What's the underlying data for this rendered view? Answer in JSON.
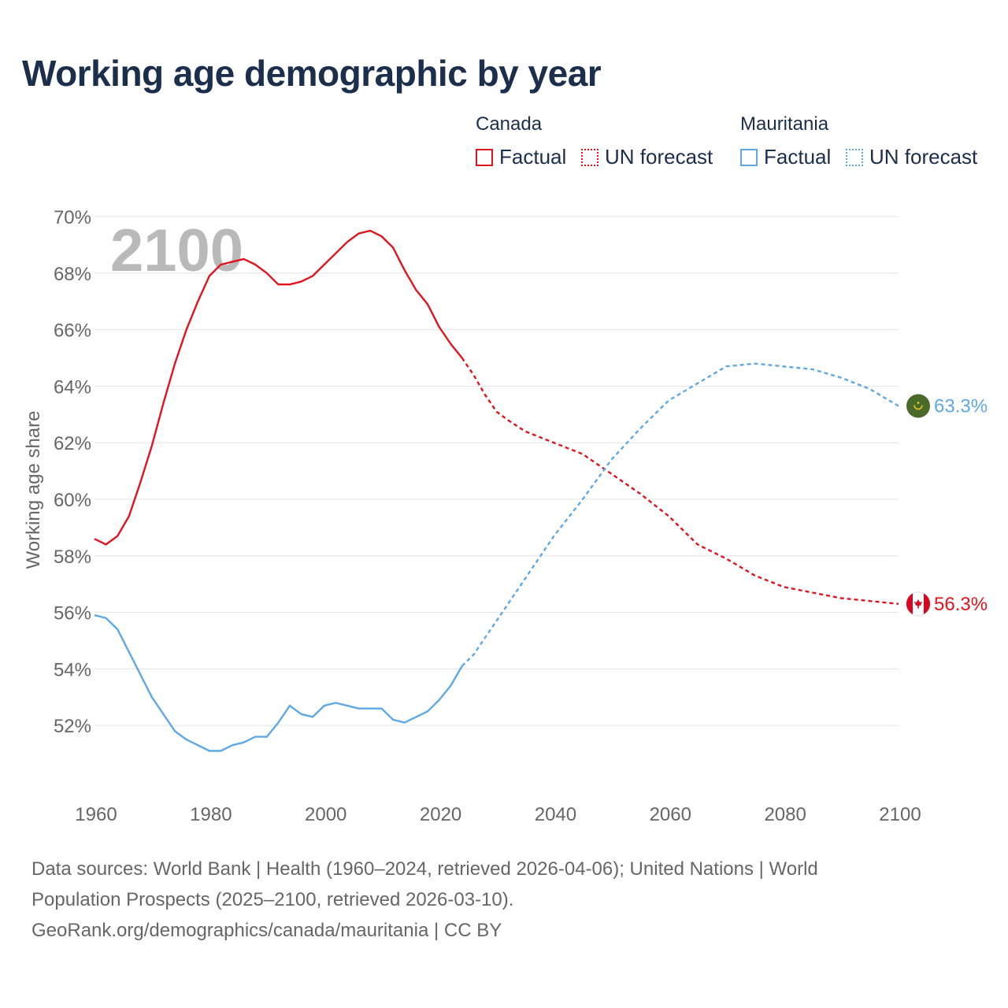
{
  "title": "Working age demographic by year",
  "legend": {
    "groups": [
      {
        "name": "Canada",
        "factual_label": "Factual",
        "forecast_label": "UN forecast",
        "color": "#e0141e"
      },
      {
        "name": "Mauritania",
        "factual_label": "Factual",
        "forecast_label": "UN forecast",
        "color": "#5fa8e6"
      }
    ]
  },
  "chart_data": {
    "type": "line",
    "ylabel": "Working age share",
    "xlabel": "",
    "year_watermark": "2100",
    "xlim": [
      1960,
      2100
    ],
    "ylim": [
      50,
      70
    ],
    "x_ticks": [
      1960,
      1980,
      2000,
      2020,
      2040,
      2060,
      2080,
      2100
    ],
    "x_tick_labels": [
      "1960",
      "1980",
      "2000",
      "2020",
      "2040",
      "2060",
      "2080",
      "2100"
    ],
    "y_ticks": [
      52,
      54,
      56,
      58,
      60,
      62,
      64,
      66,
      68,
      70
    ],
    "y_tick_labels": [
      "52%",
      "54%",
      "56%",
      "58%",
      "60%",
      "62%",
      "64%",
      "66%",
      "68%",
      "70%"
    ],
    "factual_end_year": 2024,
    "series": [
      {
        "name": "Canada",
        "color": "#e0141e",
        "end_label": "56.3%",
        "points": [
          [
            1960,
            58.6
          ],
          [
            1962,
            58.4
          ],
          [
            1964,
            58.7
          ],
          [
            1966,
            59.4
          ],
          [
            1968,
            60.6
          ],
          [
            1970,
            61.9
          ],
          [
            1972,
            63.4
          ],
          [
            1974,
            64.8
          ],
          [
            1976,
            66.0
          ],
          [
            1978,
            67.0
          ],
          [
            1980,
            67.9
          ],
          [
            1982,
            68.3
          ],
          [
            1984,
            68.4
          ],
          [
            1986,
            68.5
          ],
          [
            1988,
            68.3
          ],
          [
            1990,
            68.0
          ],
          [
            1992,
            67.6
          ],
          [
            1994,
            67.6
          ],
          [
            1996,
            67.7
          ],
          [
            1998,
            67.9
          ],
          [
            2000,
            68.3
          ],
          [
            2002,
            68.7
          ],
          [
            2004,
            69.1
          ],
          [
            2006,
            69.4
          ],
          [
            2008,
            69.5
          ],
          [
            2010,
            69.3
          ],
          [
            2012,
            68.9
          ],
          [
            2014,
            68.1
          ],
          [
            2016,
            67.4
          ],
          [
            2018,
            66.9
          ],
          [
            2020,
            66.1
          ],
          [
            2022,
            65.5
          ],
          [
            2024,
            65.0
          ],
          [
            2026,
            64.4
          ],
          [
            2028,
            63.7
          ],
          [
            2030,
            63.1
          ],
          [
            2032,
            62.8
          ],
          [
            2035,
            62.4
          ],
          [
            2040,
            62.0
          ],
          [
            2045,
            61.6
          ],
          [
            2050,
            60.9
          ],
          [
            2055,
            60.2
          ],
          [
            2060,
            59.4
          ],
          [
            2065,
            58.4
          ],
          [
            2070,
            57.9
          ],
          [
            2075,
            57.3
          ],
          [
            2080,
            56.9
          ],
          [
            2085,
            56.7
          ],
          [
            2090,
            56.5
          ],
          [
            2095,
            56.4
          ],
          [
            2100,
            56.3
          ]
        ]
      },
      {
        "name": "Mauritania",
        "color": "#5fa8e6",
        "end_label": "63.3%",
        "points": [
          [
            1960,
            55.9
          ],
          [
            1962,
            55.8
          ],
          [
            1964,
            55.4
          ],
          [
            1966,
            54.6
          ],
          [
            1968,
            53.8
          ],
          [
            1970,
            53.0
          ],
          [
            1972,
            52.4
          ],
          [
            1974,
            51.8
          ],
          [
            1976,
            51.5
          ],
          [
            1978,
            51.3
          ],
          [
            1980,
            51.1
          ],
          [
            1982,
            51.1
          ],
          [
            1984,
            51.3
          ],
          [
            1986,
            51.4
          ],
          [
            1988,
            51.6
          ],
          [
            1990,
            51.6
          ],
          [
            1992,
            52.1
          ],
          [
            1994,
            52.7
          ],
          [
            1996,
            52.4
          ],
          [
            1998,
            52.3
          ],
          [
            2000,
            52.7
          ],
          [
            2002,
            52.8
          ],
          [
            2004,
            52.7
          ],
          [
            2006,
            52.6
          ],
          [
            2008,
            52.6
          ],
          [
            2010,
            52.6
          ],
          [
            2012,
            52.2
          ],
          [
            2014,
            52.1
          ],
          [
            2016,
            52.3
          ],
          [
            2018,
            52.5
          ],
          [
            2020,
            52.9
          ],
          [
            2022,
            53.4
          ],
          [
            2024,
            54.1
          ],
          [
            2026,
            54.5
          ],
          [
            2030,
            55.7
          ],
          [
            2035,
            57.2
          ],
          [
            2040,
            58.7
          ],
          [
            2045,
            60.0
          ],
          [
            2050,
            61.4
          ],
          [
            2055,
            62.5
          ],
          [
            2060,
            63.5
          ],
          [
            2065,
            64.1
          ],
          [
            2070,
            64.7
          ],
          [
            2075,
            64.8
          ],
          [
            2080,
            64.7
          ],
          [
            2085,
            64.6
          ],
          [
            2090,
            64.3
          ],
          [
            2095,
            63.9
          ],
          [
            2100,
            63.3
          ]
        ]
      }
    ]
  },
  "footer": {
    "line1": "Data sources: World Bank | Health (1960–2024, retrieved 2026-04-06); United Nations | World",
    "line2": "Population Prospects (2025–2100, retrieved 2026-03-10).",
    "line3": "GeoRank.org/demographics/canada/mauritania | CC BY"
  }
}
